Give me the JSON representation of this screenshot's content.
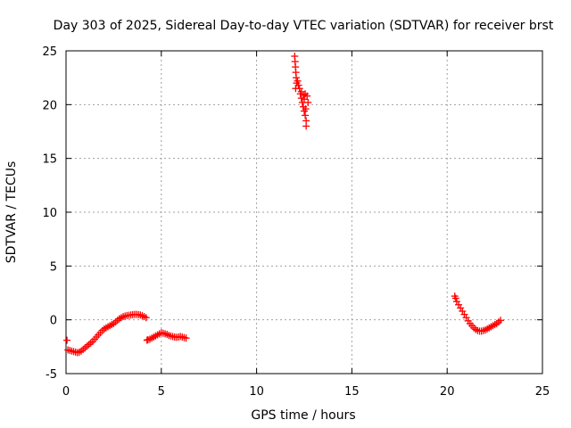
{
  "chart_data": {
    "type": "scatter",
    "title": "Day 303 of 2025, Sidereal Day-to-day VTEC variation (SDTVAR) for receiver brst",
    "xlabel": "GPS time / hours",
    "ylabel": "SDTVAR / TECUs",
    "xlim": [
      0,
      25
    ],
    "ylim": [
      -5,
      25
    ],
    "x_ticks": [
      0,
      5,
      10,
      15,
      20,
      25
    ],
    "y_ticks": [
      -5,
      0,
      5,
      10,
      15,
      20,
      25
    ],
    "grid": true,
    "marker": "plus",
    "colors": {
      "series": "#ff0000",
      "grid": "#a0a0a0",
      "axis": "#000000"
    },
    "series": [
      {
        "name": "SDTVAR",
        "segments": [
          [
            [
              0.05,
              -1.9
            ],
            [
              0.1,
              -2.8
            ],
            [
              0.2,
              -2.85
            ],
            [
              0.3,
              -2.9
            ],
            [
              0.4,
              -2.95
            ],
            [
              0.5,
              -3.0
            ],
            [
              0.6,
              -3.05
            ],
            [
              0.7,
              -3.0
            ],
            [
              0.8,
              -2.9
            ],
            [
              0.9,
              -2.75
            ],
            [
              1.0,
              -2.6
            ],
            [
              1.1,
              -2.45
            ],
            [
              1.2,
              -2.3
            ],
            [
              1.3,
              -2.15
            ],
            [
              1.4,
              -2.0
            ],
            [
              1.5,
              -1.8
            ],
            [
              1.6,
              -1.6
            ],
            [
              1.7,
              -1.4
            ],
            [
              1.8,
              -1.2
            ],
            [
              1.9,
              -1.0
            ],
            [
              2.0,
              -0.85
            ],
            [
              2.1,
              -0.75
            ],
            [
              2.2,
              -0.65
            ],
            [
              2.3,
              -0.55
            ],
            [
              2.4,
              -0.45
            ],
            [
              2.5,
              -0.35
            ],
            [
              2.6,
              -0.2
            ],
            [
              2.7,
              -0.05
            ],
            [
              2.8,
              0.1
            ],
            [
              2.9,
              0.2
            ],
            [
              3.0,
              0.3
            ],
            [
              3.1,
              0.35
            ],
            [
              3.2,
              0.4
            ],
            [
              3.3,
              0.42
            ],
            [
              3.4,
              0.45
            ],
            [
              3.5,
              0.48
            ],
            [
              3.6,
              0.5
            ],
            [
              3.7,
              0.5
            ],
            [
              3.8,
              0.48
            ],
            [
              3.9,
              0.45
            ],
            [
              4.0,
              0.38
            ],
            [
              4.1,
              0.3
            ],
            [
              4.2,
              0.2
            ]
          ],
          [
            [
              4.25,
              -1.9
            ],
            [
              4.3,
              -1.85
            ],
            [
              4.4,
              -1.8
            ],
            [
              4.5,
              -1.7
            ],
            [
              4.6,
              -1.6
            ],
            [
              4.7,
              -1.5
            ],
            [
              4.8,
              -1.4
            ],
            [
              4.9,
              -1.3
            ],
            [
              5.0,
              -1.2
            ],
            [
              5.1,
              -1.25
            ],
            [
              5.2,
              -1.3
            ],
            [
              5.3,
              -1.35
            ],
            [
              5.4,
              -1.45
            ],
            [
              5.5,
              -1.5
            ],
            [
              5.6,
              -1.55
            ],
            [
              5.7,
              -1.6
            ],
            [
              5.8,
              -1.62
            ],
            [
              5.9,
              -1.6
            ],
            [
              6.0,
              -1.55
            ],
            [
              6.1,
              -1.6
            ],
            [
              6.2,
              -1.65
            ],
            [
              6.3,
              -1.7
            ]
          ],
          [
            [
              12.0,
              24.5
            ],
            [
              12.02,
              24.0
            ],
            [
              12.04,
              23.5
            ],
            [
              12.06,
              23.0
            ],
            [
              12.08,
              22.5
            ],
            [
              12.1,
              22.0
            ],
            [
              12.05,
              21.5
            ],
            [
              12.15,
              22.2
            ],
            [
              12.2,
              21.8
            ],
            [
              12.25,
              21.5
            ],
            [
              12.3,
              21.0
            ],
            [
              12.35,
              20.6
            ],
            [
              12.4,
              20.2
            ],
            [
              12.45,
              19.8
            ],
            [
              12.5,
              19.4
            ],
            [
              12.55,
              19.0
            ],
            [
              12.6,
              18.5
            ],
            [
              12.6,
              18.0
            ],
            [
              12.5,
              20.5
            ],
            [
              12.55,
              21.0
            ],
            [
              12.65,
              20.8
            ],
            [
              12.7,
              20.2
            ],
            [
              12.45,
              20.9
            ],
            [
              12.35,
              21.2
            ],
            [
              12.58,
              19.6
            ]
          ],
          [
            [
              20.4,
              2.2
            ],
            [
              20.45,
              2.0
            ],
            [
              20.5,
              1.7
            ],
            [
              20.6,
              1.4
            ],
            [
              20.7,
              1.1
            ],
            [
              20.8,
              0.8
            ],
            [
              20.9,
              0.5
            ],
            [
              21.0,
              0.2
            ],
            [
              21.1,
              -0.1
            ],
            [
              21.2,
              -0.35
            ],
            [
              21.3,
              -0.55
            ],
            [
              21.4,
              -0.75
            ],
            [
              21.5,
              -0.9
            ],
            [
              21.6,
              -1.0
            ],
            [
              21.7,
              -1.05
            ],
            [
              21.8,
              -1.05
            ],
            [
              21.9,
              -1.0
            ],
            [
              22.0,
              -0.95
            ],
            [
              22.1,
              -0.85
            ],
            [
              22.2,
              -0.75
            ],
            [
              22.3,
              -0.65
            ],
            [
              22.4,
              -0.55
            ],
            [
              22.5,
              -0.45
            ],
            [
              22.6,
              -0.35
            ],
            [
              22.7,
              -0.2
            ],
            [
              22.8,
              -0.05
            ]
          ]
        ]
      }
    ]
  }
}
